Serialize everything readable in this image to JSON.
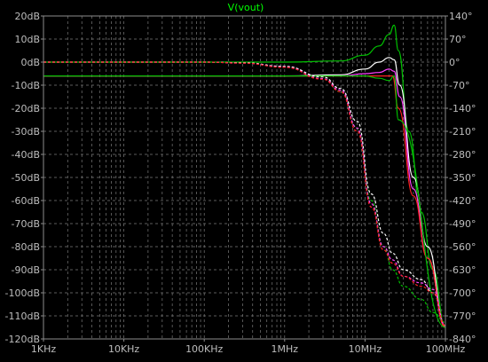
{
  "chart_data": {
    "type": "line",
    "title": "V(vout)",
    "x_scale": "log",
    "xlim": [
      "1KHz",
      "100MHz"
    ],
    "x_ticks": [
      "1KHz",
      "10KHz",
      "100KHz",
      "1MHz",
      "10MHz",
      "100MHz"
    ],
    "ylim_left": [
      -120,
      20
    ],
    "ylim_right": [
      -840,
      140
    ],
    "y_left_ticks": [
      "20dB",
      "10dB",
      "0dB",
      "-10dB",
      "-20dB",
      "-30dB",
      "-40dB",
      "-50dB",
      "-60dB",
      "-70dB",
      "-80dB",
      "-90dB",
      "-100dB",
      "-110dB",
      "-120dB"
    ],
    "y_right_ticks": [
      "140°",
      "70°",
      "0°",
      "-70°",
      "-140°",
      "-210°",
      "-280°",
      "-350°",
      "-420°",
      "-490°",
      "-560°",
      "-630°",
      "-700°",
      "-770°",
      "-840°"
    ],
    "grid": true,
    "colors": {
      "background": "#000000",
      "grid": "#7a7a7a",
      "axis": "#8c8c8c",
      "tick_text": "#bdbdbd",
      "title": "#00ff00",
      "white": "#ffffff",
      "green": "#00c000",
      "magenta": "#ff40ff",
      "red": "#ff2020"
    },
    "series": [
      {
        "color": "#00c000",
        "style": "solid",
        "axis": "left",
        "x_hz": [
          1000,
          100000,
          1000000,
          5000000,
          10000000,
          15000000,
          20000000,
          23000000,
          26000000,
          35000000,
          50000000,
          70000000,
          100000000
        ],
        "y": [
          0,
          0,
          0,
          0.5,
          3,
          7,
          12,
          16,
          5,
          -30,
          -65,
          -90,
          -115
        ]
      },
      {
        "color": "#ffffff",
        "style": "solid",
        "axis": "left",
        "x_hz": [
          1000,
          100000,
          1000000,
          5000000,
          10000000,
          15000000,
          20000000,
          23000000,
          27000000,
          40000000,
          60000000,
          100000000
        ],
        "y": [
          -6,
          -6,
          -6,
          -5.5,
          -3,
          0,
          2,
          1,
          -10,
          -50,
          -80,
          -115
        ]
      },
      {
        "color": "#ff40ff",
        "style": "solid",
        "axis": "left",
        "x_hz": [
          1000,
          100000,
          1000000,
          5000000,
          10000000,
          15000000,
          20000000,
          23000000,
          27000000,
          40000000,
          60000000,
          100000000
        ],
        "y": [
          -6,
          -6,
          -6,
          -6,
          -5,
          -4.5,
          -3,
          -4,
          -15,
          -55,
          -85,
          -115
        ]
      },
      {
        "color": "#ff2020",
        "style": "solid",
        "axis": "left",
        "x_hz": [
          1000,
          100000,
          1000000,
          5000000,
          10000000,
          15000000,
          20000000,
          22000000,
          26000000,
          40000000,
          60000000,
          100000000
        ],
        "y": [
          -6,
          -6,
          -6,
          -6,
          -6,
          -6,
          -6,
          -6,
          -20,
          -58,
          -85,
          -115
        ]
      },
      {
        "color": "#00c000",
        "style": "solid",
        "axis": "left",
        "x_hz": [
          1000,
          100000,
          1000000,
          5000000,
          10000000,
          15000000,
          20000000,
          23000000,
          26000000,
          100000000
        ],
        "y": [
          -6,
          -6,
          -6,
          -6,
          -6,
          -7,
          -8,
          -6,
          -25,
          -115
        ]
      },
      {
        "color": "#00c000",
        "style": "dashed",
        "axis": "right",
        "x_hz": [
          1000,
          100000,
          300000,
          1000000,
          3000000,
          5000000,
          8000000,
          12000000,
          17000000,
          22000000,
          30000000,
          50000000,
          70000000,
          100000000
        ],
        "y": [
          0,
          0,
          -2,
          -15,
          -50,
          -90,
          -200,
          -420,
          -560,
          -630,
          -680,
          -720,
          -760,
          -790
        ]
      },
      {
        "color": "#ffffff",
        "style": "dashed",
        "axis": "right",
        "x_hz": [
          1000,
          100000,
          300000,
          1000000,
          3000000,
          5000000,
          8000000,
          12000000,
          17000000,
          22000000,
          30000000,
          50000000,
          70000000,
          100000000
        ],
        "y": [
          0,
          0,
          -2,
          -13,
          -45,
          -80,
          -180,
          -400,
          -520,
          -580,
          -630,
          -660,
          -700,
          -800
        ]
      },
      {
        "color": "#ff40ff",
        "style": "dashed",
        "axis": "right",
        "x_hz": [
          1000,
          100000,
          300000,
          1000000,
          3000000,
          5000000,
          8000000,
          12000000,
          17000000,
          22000000,
          30000000,
          50000000,
          70000000,
          100000000
        ],
        "y": [
          0,
          0,
          -3,
          -15,
          -50,
          -85,
          -200,
          -430,
          -560,
          -600,
          -650,
          -670,
          -690,
          -800
        ]
      },
      {
        "color": "#ff2020",
        "style": "dashed",
        "axis": "right",
        "x_hz": [
          1000,
          100000,
          300000,
          1000000,
          3000000,
          5000000,
          8000000,
          12000000,
          17000000,
          22000000,
          30000000,
          50000000,
          70000000,
          100000000
        ],
        "y": [
          0,
          0,
          -3,
          -16,
          -52,
          -90,
          -210,
          -440,
          -570,
          -610,
          -650,
          -680,
          -700,
          -800
        ]
      }
    ]
  }
}
